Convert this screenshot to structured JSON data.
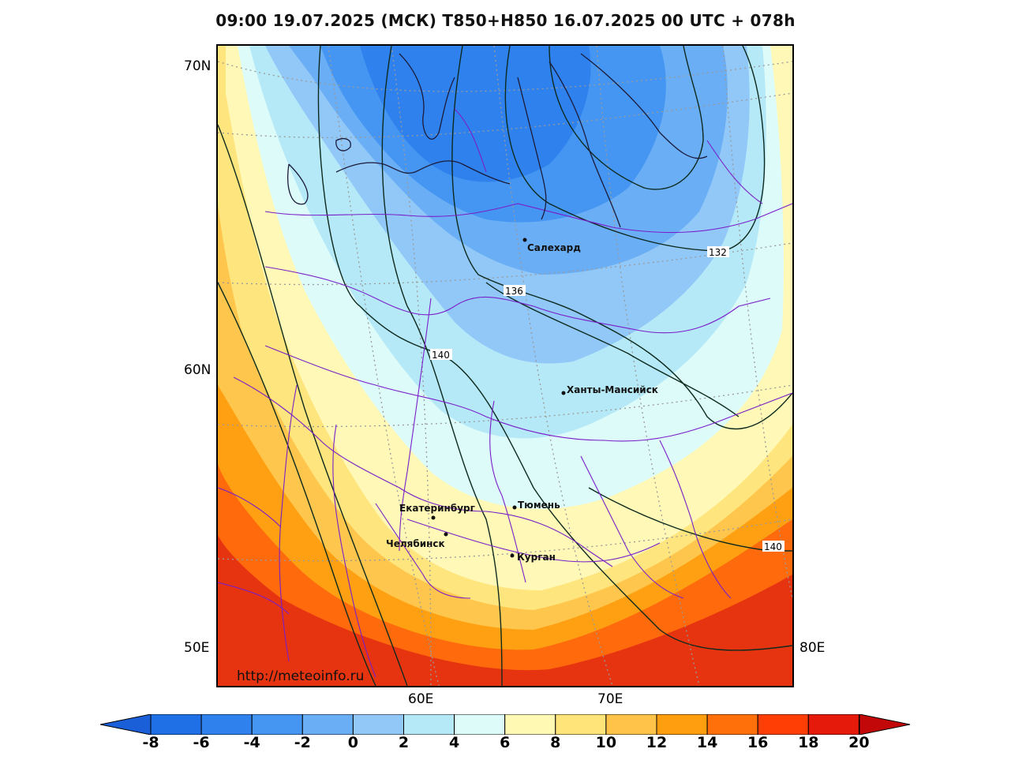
{
  "header": {
    "title": "09:00 19.07.2025 (МСК) T850+H850 16.07.2025 00 UTC + 078h"
  },
  "axes": {
    "lat_labels": [
      "70N",
      "60N",
      "50E"
    ],
    "lon_labels": [
      "60E",
      "70E",
      "80E"
    ]
  },
  "cities": [
    {
      "name": "Салехард"
    },
    {
      "name": "Ханты-Мансийск"
    },
    {
      "name": "Екатеринбург"
    },
    {
      "name": "Тюмень"
    },
    {
      "name": "Челябинск"
    },
    {
      "name": "Курган"
    }
  ],
  "contour_labels": [
    "132",
    "136",
    "140",
    "140"
  ],
  "watermark": "http://meteoinfo.ru",
  "colorbar": {
    "ticks": [
      "-8",
      "-6",
      "-4",
      "-2",
      "0",
      "2",
      "4",
      "6",
      "8",
      "10",
      "12",
      "14",
      "16",
      "18",
      "20"
    ],
    "colors": [
      "#1f6fe6",
      "#2f82ee",
      "#4596f2",
      "#6aaef5",
      "#91c8f8",
      "#b6e9f7",
      "#dcfbf9",
      "#fff9b4",
      "#ffe47a",
      "#ffc34a",
      "#ff9f0f",
      "#ff6f0a",
      "#ff3e06",
      "#e51a0a"
    ],
    "under_color": "#1a5fd8",
    "over_color": "#c20808"
  }
}
